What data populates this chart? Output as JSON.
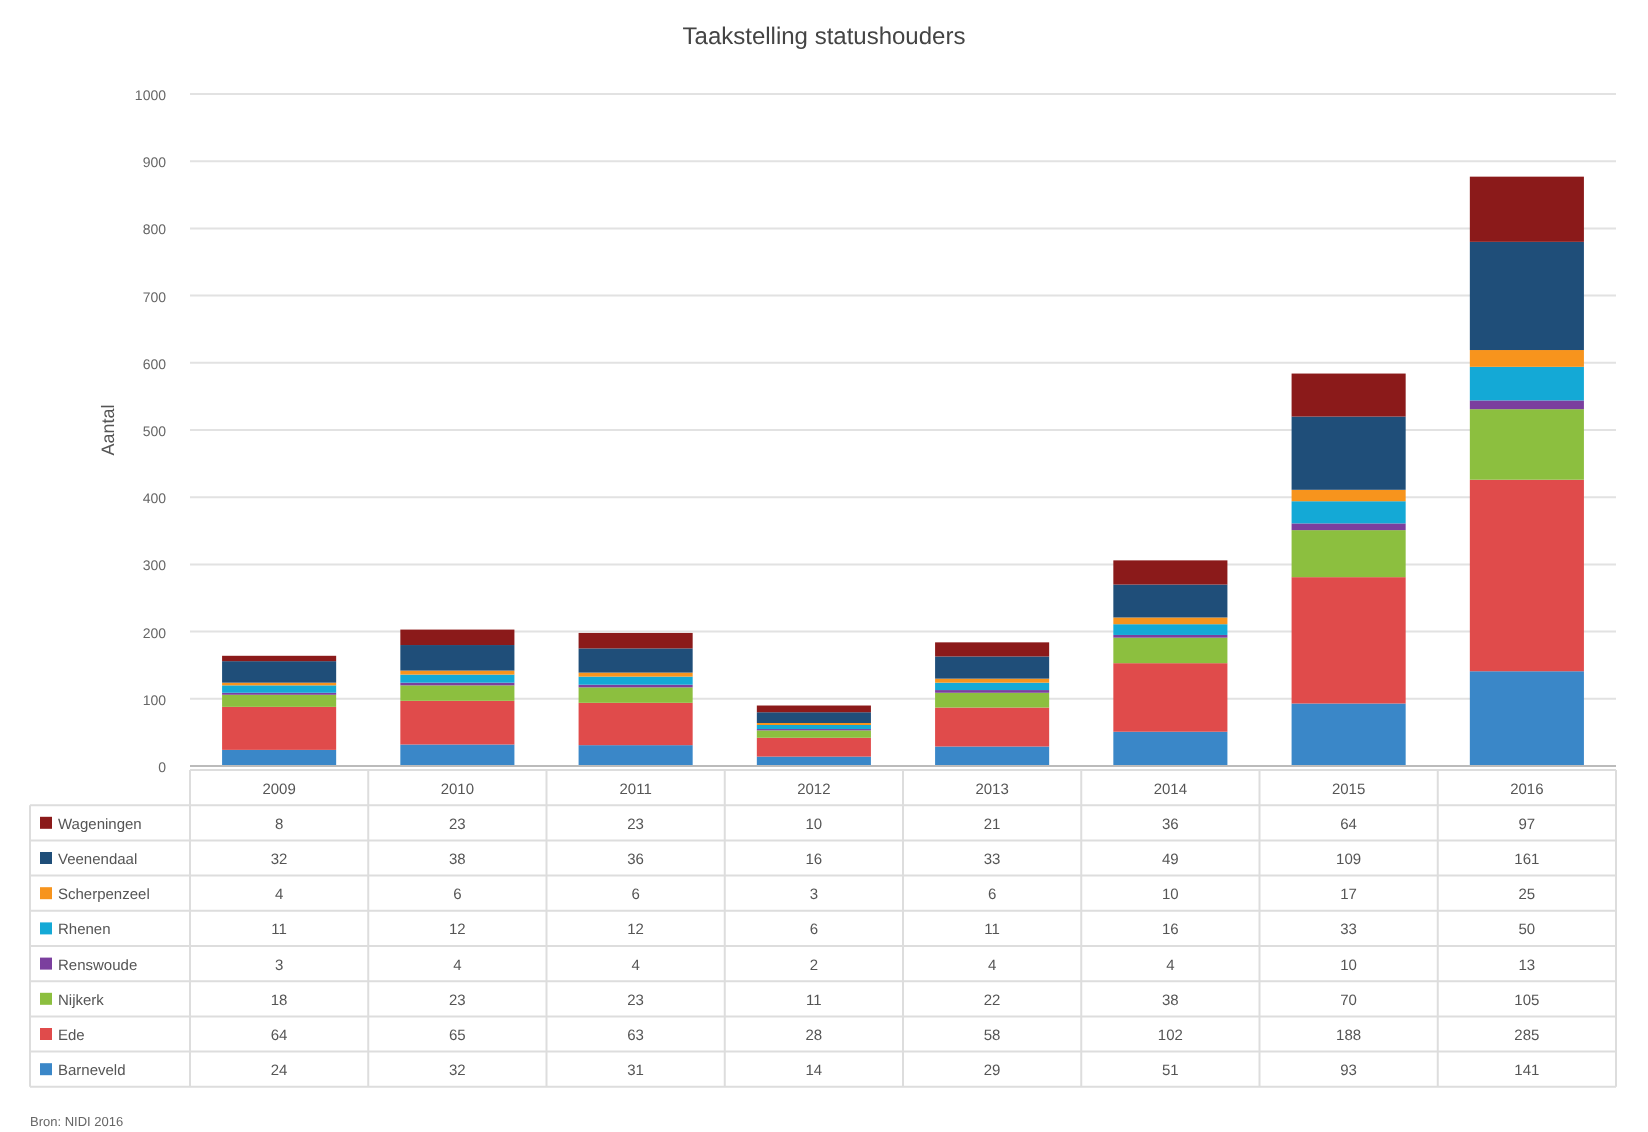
{
  "chart_data": {
    "type": "bar",
    "title": "Taakstelling statushouders",
    "ylabel": "Aantal",
    "categories": [
      "2009",
      "2010",
      "2011",
      "2012",
      "2013",
      "2014",
      "2015",
      "2016"
    ],
    "stacked": true,
    "ylim": [
      0,
      1000
    ],
    "yticks": [
      0,
      100,
      200,
      300,
      400,
      500,
      600,
      700,
      800,
      900,
      1000
    ],
    "grid": "y",
    "legend": "bottom",
    "data_labels": true,
    "series": [
      {
        "name": "Barneveld",
        "color": "#3a87c8",
        "values": [
          24,
          32,
          31,
          14,
          29,
          51,
          93,
          141
        ]
      },
      {
        "name": "Ede",
        "color": "#e04b4b",
        "values": [
          64,
          65,
          63,
          28,
          58,
          102,
          188,
          285
        ]
      },
      {
        "name": "Nijkerk",
        "color": "#8cbf3f",
        "values": [
          18,
          23,
          23,
          11,
          22,
          38,
          70,
          105
        ]
      },
      {
        "name": "Renswoude",
        "color": "#7b3f9e",
        "values": [
          3,
          4,
          4,
          2,
          4,
          4,
          10,
          13
        ]
      },
      {
        "name": "Rhenen",
        "color": "#14a9d6",
        "values": [
          11,
          12,
          12,
          6,
          11,
          16,
          33,
          50
        ]
      },
      {
        "name": "Scherpenzeel",
        "color": "#f7941d",
        "values": [
          4,
          6,
          6,
          3,
          6,
          10,
          17,
          25
        ]
      },
      {
        "name": "Veenendaal",
        "color": "#1f4e79",
        "values": [
          32,
          38,
          36,
          16,
          33,
          49,
          109,
          161
        ]
      },
      {
        "name": "Wageningen",
        "color": "#8b1a1a",
        "values": [
          8,
          23,
          23,
          10,
          21,
          36,
          64,
          97
        ]
      }
    ],
    "annotations": [
      "Bron: NIDI 2016"
    ]
  }
}
